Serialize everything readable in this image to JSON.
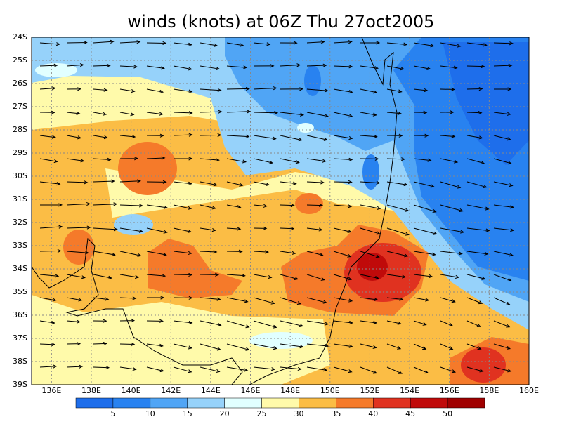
{
  "title": "winds (knots) at 06Z Thu 27oct2005",
  "map": {
    "xlim": [
      135,
      160
    ],
    "ylim": [
      24,
      39
    ],
    "xticks": [
      {
        "value": 136,
        "label": "136E"
      },
      {
        "value": 138,
        "label": "138E"
      },
      {
        "value": 140,
        "label": "140E"
      },
      {
        "value": 142,
        "label": "142E"
      },
      {
        "value": 144,
        "label": "144E"
      },
      {
        "value": 146,
        "label": "146E"
      },
      {
        "value": 148,
        "label": "148E"
      },
      {
        "value": 150,
        "label": "150E"
      },
      {
        "value": 152,
        "label": "152E"
      },
      {
        "value": 154,
        "label": "154E"
      },
      {
        "value": 156,
        "label": "156E"
      },
      {
        "value": 158,
        "label": "158E"
      },
      {
        "value": 160,
        "label": "160E"
      }
    ],
    "yticks": [
      {
        "value": 24,
        "label": "24S"
      },
      {
        "value": 25,
        "label": "25S"
      },
      {
        "value": 26,
        "label": "26S"
      },
      {
        "value": 27,
        "label": "27S"
      },
      {
        "value": 28,
        "label": "28S"
      },
      {
        "value": 29,
        "label": "29S"
      },
      {
        "value": 30,
        "label": "30S"
      },
      {
        "value": 31,
        "label": "31S"
      },
      {
        "value": 32,
        "label": "32S"
      },
      {
        "value": 33,
        "label": "33S"
      },
      {
        "value": 34,
        "label": "34S"
      },
      {
        "value": 35,
        "label": "35S"
      },
      {
        "value": 36,
        "label": "36S"
      },
      {
        "value": 37,
        "label": "37S"
      },
      {
        "value": 38,
        "label": "38S"
      },
      {
        "value": 39,
        "label": "39S"
      }
    ],
    "grid": true
  },
  "colorbar": {
    "levels": [
      5,
      10,
      15,
      20,
      25,
      30,
      35,
      40,
      45,
      50
    ],
    "colors": [
      "#1e6eeb",
      "#2882f0",
      "#50a5f5",
      "#96d2fa",
      "#e1ffff",
      "#fffaaa",
      "#fbbd45",
      "#f57a2a",
      "#e03220",
      "#c00a0a",
      "#a00000"
    ]
  }
}
